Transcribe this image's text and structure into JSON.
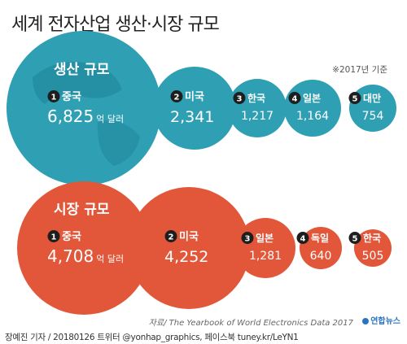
{
  "title": "세계 전자산업 생산·시장 규모",
  "basis_note": "※2017년 기준",
  "source": "자료/ The Yearbook of World Electronics Data 2017",
  "credit": "장예진 기자 / 20180126 트위터 @yonhap_graphics, 페이스북 tuney.kr/LeYN1",
  "logo_text": "연합뉴스",
  "colors": {
    "production": "#2f9fb3",
    "production_dark": "#1b7f92",
    "market": "#e2573a",
    "badge": "#1e1e1e",
    "text_on_circle": "#ffffff"
  },
  "chart_data": [
    {
      "type": "bubble",
      "title": "생산 규모",
      "unit": "억 달러",
      "categories": [
        "중국",
        "미국",
        "한국",
        "일본",
        "대만"
      ],
      "ranks": [
        "1",
        "2",
        "3",
        "4",
        "5"
      ],
      "values": [
        6825,
        2341,
        1217,
        1164,
        754
      ],
      "labels": [
        "6,825",
        "2,341",
        "1,217",
        "1,164",
        "754"
      ]
    },
    {
      "type": "bubble",
      "title": "시장 규모",
      "unit": "억 달러",
      "categories": [
        "중국",
        "미국",
        "일본",
        "독일",
        "한국"
      ],
      "ranks": [
        "1",
        "2",
        "3",
        "4",
        "5"
      ],
      "values": [
        4708,
        4252,
        1281,
        640,
        505
      ],
      "labels": [
        "4,708",
        "4,252",
        "1,281",
        "640",
        "505"
      ]
    }
  ]
}
